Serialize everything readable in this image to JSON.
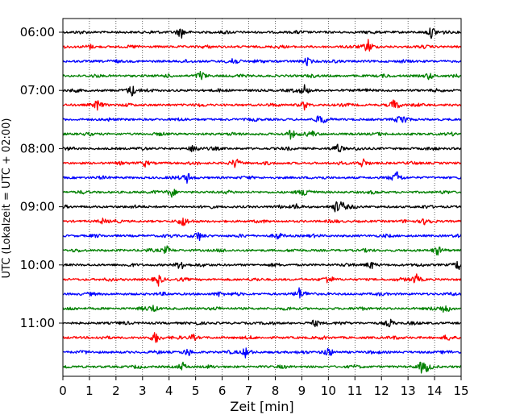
{
  "chart_data": {
    "type": "line",
    "subtype": "helicorder",
    "xlabel": "Zeit  [min]",
    "ylabel": "UTC (Lokalzeit = UTC + 02:00)",
    "xlim": [
      0,
      15
    ],
    "x_ticks": [
      "0",
      "1",
      "2",
      "3",
      "4",
      "5",
      "6",
      "7",
      "8",
      "9",
      "10",
      "11",
      "12",
      "13",
      "14",
      "15"
    ],
    "y_ticks": [
      "06:00",
      "07:00",
      "08:00",
      "09:00",
      "10:00",
      "11:00"
    ],
    "grid": "vertical dotted",
    "row_colors": [
      "#000000",
      "#ff0000",
      "#0000ff",
      "#008000"
    ],
    "rows": [
      {
        "start": "06:00",
        "color": "#000000",
        "events": [
          {
            "x": 4.45,
            "amp": 1.0
          },
          {
            "x": 13.9,
            "amp": 1.0
          }
        ]
      },
      {
        "start": "06:15",
        "color": "#ff0000",
        "events": [
          {
            "x": 11.5,
            "amp": 1.2
          },
          {
            "x": 1.0,
            "amp": 0.4
          }
        ]
      },
      {
        "start": "06:30",
        "color": "#0000ff",
        "events": [
          {
            "x": 6.4,
            "amp": 0.9
          },
          {
            "x": 9.2,
            "amp": 0.6
          }
        ]
      },
      {
        "start": "06:45",
        "color": "#008000",
        "events": [
          {
            "x": 5.2,
            "amp": 0.9
          },
          {
            "x": 13.8,
            "amp": 0.6
          }
        ]
      },
      {
        "start": "07:00",
        "color": "#000000",
        "events": [
          {
            "x": 2.6,
            "amp": 1.0
          },
          {
            "x": 9.1,
            "amp": 0.9
          }
        ]
      },
      {
        "start": "07:15",
        "color": "#ff0000",
        "events": [
          {
            "x": 1.3,
            "amp": 0.9
          },
          {
            "x": 9.1,
            "amp": 0.7
          },
          {
            "x": 12.5,
            "amp": 1.1
          }
        ]
      },
      {
        "start": "07:30",
        "color": "#0000ff",
        "events": [
          {
            "x": 9.7,
            "amp": 0.9
          },
          {
            "x": 12.8,
            "amp": 1.0
          }
        ]
      },
      {
        "start": "07:45",
        "color": "#008000",
        "events": [
          {
            "x": 8.6,
            "amp": 0.8
          },
          {
            "x": 9.4,
            "amp": 0.4
          }
        ]
      },
      {
        "start": "08:00",
        "color": "#000000",
        "events": [
          {
            "x": 4.95,
            "amp": 0.9
          },
          {
            "x": 10.35,
            "amp": 0.9
          }
        ]
      },
      {
        "start": "08:15",
        "color": "#ff0000",
        "events": [
          {
            "x": 3.1,
            "amp": 0.5
          },
          {
            "x": 6.5,
            "amp": 0.9
          },
          {
            "x": 11.3,
            "amp": 0.8
          }
        ]
      },
      {
        "start": "08:30",
        "color": "#0000ff",
        "events": [
          {
            "x": 4.7,
            "amp": 0.9
          },
          {
            "x": 12.6,
            "amp": 1.0
          }
        ]
      },
      {
        "start": "08:45",
        "color": "#008000",
        "events": [
          {
            "x": 4.1,
            "amp": 0.8
          },
          {
            "x": 9.2,
            "amp": 0.9
          }
        ]
      },
      {
        "start": "09:00",
        "color": "#000000",
        "events": [
          {
            "x": 10.3,
            "amp": 1.0
          },
          {
            "x": 10.5,
            "amp": 0.9
          },
          {
            "x": 8.8,
            "amp": 0.4
          }
        ]
      },
      {
        "start": "09:15",
        "color": "#ff0000",
        "events": [
          {
            "x": 4.5,
            "amp": 0.8
          },
          {
            "x": 13.7,
            "amp": 0.9
          },
          {
            "x": 1.5,
            "amp": 0.4
          }
        ]
      },
      {
        "start": "09:30",
        "color": "#0000ff",
        "events": [
          {
            "x": 5.1,
            "amp": 0.9
          },
          {
            "x": 8.1,
            "amp": 0.6
          }
        ]
      },
      {
        "start": "09:45",
        "color": "#008000",
        "events": [
          {
            "x": 3.9,
            "amp": 0.7
          },
          {
            "x": 14.1,
            "amp": 0.6
          }
        ]
      },
      {
        "start": "10:00",
        "color": "#000000",
        "events": [
          {
            "x": 4.45,
            "amp": 1.0
          },
          {
            "x": 11.6,
            "amp": 0.7
          },
          {
            "x": 14.9,
            "amp": 0.9
          }
        ]
      },
      {
        "start": "10:15",
        "color": "#ff0000",
        "events": [
          {
            "x": 3.6,
            "amp": 0.9
          },
          {
            "x": 10.0,
            "amp": 0.6
          },
          {
            "x": 13.3,
            "amp": 0.9
          }
        ]
      },
      {
        "start": "10:30",
        "color": "#0000ff",
        "events": [
          {
            "x": 8.9,
            "amp": 0.9
          },
          {
            "x": 5.9,
            "amp": 0.4
          }
        ]
      },
      {
        "start": "10:45",
        "color": "#008000",
        "events": [
          {
            "x": 3.4,
            "amp": 0.6
          },
          {
            "x": 14.4,
            "amp": 0.9
          }
        ]
      },
      {
        "start": "11:00",
        "color": "#000000",
        "events": [
          {
            "x": 9.5,
            "amp": 0.6
          },
          {
            "x": 12.3,
            "amp": 0.7
          }
        ]
      },
      {
        "start": "11:15",
        "color": "#ff0000",
        "events": [
          {
            "x": 3.5,
            "amp": 1.0
          },
          {
            "x": 4.9,
            "amp": 0.5
          },
          {
            "x": 14.5,
            "amp": 0.6
          }
        ]
      },
      {
        "start": "11:30",
        "color": "#0000ff",
        "events": [
          {
            "x": 4.7,
            "amp": 0.7
          },
          {
            "x": 6.9,
            "amp": 0.9
          },
          {
            "x": 10.0,
            "amp": 0.9
          }
        ]
      },
      {
        "start": "11:45",
        "color": "#008000",
        "events": [
          {
            "x": 4.5,
            "amp": 0.7
          },
          {
            "x": 13.5,
            "amp": 0.8
          },
          {
            "x": 13.7,
            "amp": 0.7
          }
        ]
      }
    ]
  }
}
